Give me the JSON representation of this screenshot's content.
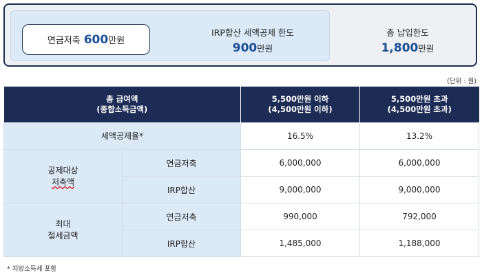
{
  "summary": {
    "pension_savings": {
      "label": "연금저축",
      "amount": "600",
      "unit": "만원"
    },
    "irp_combined": {
      "label": "IRP합산 세액공제 한도",
      "amount": "900",
      "unit": "만원"
    },
    "total_payment": {
      "label": "총 납입한도",
      "amount": "1,800",
      "unit": "만원"
    }
  },
  "unit_note": "(단위 : 원)",
  "table": {
    "header": {
      "col1_line1": "총 급여액",
      "col1_line2": "(종합소득금액)",
      "col2_line1": "5,500만원 이하",
      "col2_line2": "(4,500만원 이하)",
      "col3_line1": "5,500만원 초과",
      "col3_line2": "(4,500만원 초과)"
    },
    "rate_row": {
      "label": "세액공제율*",
      "low": "16.5%",
      "high": "13.2%"
    },
    "eligible_group": {
      "label_line1": "공제대상",
      "label_line2": "저축액",
      "rows": [
        {
          "label": "연금저축",
          "low": "6,000,000",
          "high": "6,000,000"
        },
        {
          "label": "IRP합산",
          "low": "9,000,000",
          "high": "9,000,000"
        }
      ]
    },
    "max_group": {
      "label_line1": "최대",
      "label_line2": "절세금액",
      "rows": [
        {
          "label": "연금저축",
          "low": "990,000",
          "high": "792,000"
        },
        {
          "label": "IRP합산",
          "low": "1,485,000",
          "high": "1,188,000"
        }
      ]
    }
  },
  "footnote": "* 지방소득세 포함",
  "colors": {
    "navy": "#1d2c54",
    "accent_blue": "#1b4f95",
    "light_blue": "#dce9f6",
    "panel_gray": "#eef0f4"
  }
}
